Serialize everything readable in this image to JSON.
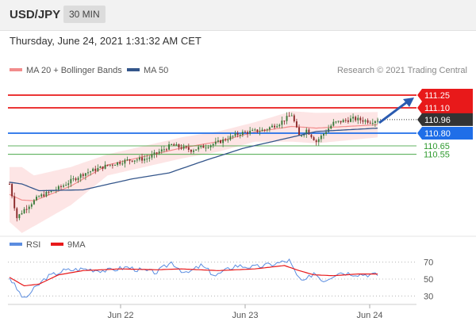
{
  "header": {
    "symbol": "USD/JPY",
    "timeframe": "30 MIN",
    "datetime": "Thursday, June 24, 2021 1:31:32 AM CET"
  },
  "colors": {
    "resistance": "#e8191a",
    "support": "#1f6ee8",
    "current": "#333333",
    "fib": "#2e9a2e",
    "ma20": "#f28c8c",
    "band_fill": "#fde0e0",
    "ma50": "#34568b",
    "bull": "#3a7a3a",
    "bear": "#8b2a2a",
    "arrow": "#2a5bb0",
    "rsi": "#5b8de0",
    "rsi_ma": "#e8191a"
  },
  "chart_data": [
    {
      "type": "candlestick",
      "legend": {
        "placement": "top-left",
        "items": [
          {
            "name": "MA 20 + Bollinger Bands",
            "color": "#f28c8c"
          },
          {
            "name": "MA 50",
            "color": "#34568b"
          }
        ]
      },
      "copyright": "Research © 2021 Trading Central",
      "x_ticks": [
        "Jun 22",
        "Jun 23",
        "Jun 24"
      ],
      "ylim": [
        109.6,
        111.4
      ],
      "current_price": 110.96,
      "levels": [
        {
          "label": "111.25",
          "value": 111.25,
          "kind": "resistance"
        },
        {
          "label": "111.10",
          "value": 111.1,
          "kind": "resistance"
        },
        {
          "label": "110.80",
          "value": 110.8,
          "kind": "support"
        },
        {
          "label": "110.65",
          "value": 110.65,
          "kind": "fib"
        },
        {
          "label": "110.55",
          "value": 110.55,
          "kind": "fib"
        }
      ],
      "trend_arrow": {
        "from": 110.96,
        "to": 111.25
      },
      "close_anchors": [
        [
          0,
          110.2
        ],
        [
          3,
          109.8
        ],
        [
          6,
          109.9
        ],
        [
          12,
          110.05
        ],
        [
          20,
          110.15
        ],
        [
          30,
          110.32
        ],
        [
          40,
          110.42
        ],
        [
          48,
          110.48
        ],
        [
          56,
          110.5
        ],
        [
          66,
          110.66
        ],
        [
          74,
          110.6
        ],
        [
          84,
          110.68
        ],
        [
          94,
          110.8
        ],
        [
          104,
          110.84
        ],
        [
          110,
          110.92
        ],
        [
          115,
          111.02
        ],
        [
          118,
          110.76
        ],
        [
          121,
          110.84
        ],
        [
          125,
          110.7
        ],
        [
          132,
          110.92
        ],
        [
          140,
          110.97
        ],
        [
          147,
          110.94
        ],
        [
          150,
          110.96
        ]
      ],
      "bands": {
        "upper": [
          [
            0,
            110.4
          ],
          [
            5,
            110.4
          ],
          [
            10,
            110.3
          ],
          [
            25,
            110.4
          ],
          [
            40,
            110.55
          ],
          [
            55,
            110.65
          ],
          [
            70,
            110.75
          ],
          [
            85,
            110.82
          ],
          [
            100,
            110.93
          ],
          [
            115,
            111.06
          ],
          [
            125,
            111.04
          ],
          [
            150,
            111.05
          ]
        ],
        "lower": [
          [
            0,
            109.75
          ],
          [
            5,
            109.62
          ],
          [
            10,
            109.7
          ],
          [
            25,
            109.95
          ],
          [
            40,
            110.3
          ],
          [
            55,
            110.4
          ],
          [
            70,
            110.5
          ],
          [
            85,
            110.58
          ],
          [
            100,
            110.7
          ],
          [
            115,
            110.7
          ],
          [
            125,
            110.68
          ],
          [
            150,
            110.75
          ]
        ]
      },
      "ma50": [
        [
          0,
          110.22
        ],
        [
          5,
          110.2
        ],
        [
          12,
          110.12
        ],
        [
          30,
          110.13
        ],
        [
          50,
          110.26
        ],
        [
          65,
          110.33
        ],
        [
          80,
          110.48
        ],
        [
          95,
          110.62
        ],
        [
          110,
          110.72
        ],
        [
          125,
          110.82
        ],
        [
          150,
          110.86
        ]
      ]
    },
    {
      "type": "line",
      "legend": {
        "placement": "top-left",
        "items": [
          {
            "name": "RSI",
            "color": "#5b8de0"
          },
          {
            "name": "9MA",
            "color": "#e8191a"
          }
        ]
      },
      "y_ticks": [
        30,
        50,
        70
      ],
      "ylim": [
        20,
        80
      ],
      "rsi_anchors": [
        [
          0,
          52
        ],
        [
          3,
          38
        ],
        [
          6,
          26
        ],
        [
          10,
          38
        ],
        [
          15,
          52
        ],
        [
          22,
          60
        ],
        [
          30,
          62
        ],
        [
          40,
          60
        ],
        [
          48,
          64
        ],
        [
          54,
          60
        ],
        [
          60,
          58
        ],
        [
          66,
          70
        ],
        [
          72,
          56
        ],
        [
          78,
          66
        ],
        [
          84,
          54
        ],
        [
          92,
          66
        ],
        [
          100,
          64
        ],
        [
          108,
          68
        ],
        [
          114,
          72
        ],
        [
          117,
          54
        ],
        [
          120,
          46
        ],
        [
          124,
          58
        ],
        [
          128,
          48
        ],
        [
          134,
          58
        ],
        [
          142,
          56
        ],
        [
          150,
          55
        ]
      ],
      "ma9_anchors": [
        [
          0,
          52
        ],
        [
          6,
          42
        ],
        [
          12,
          44
        ],
        [
          20,
          55
        ],
        [
          30,
          60
        ],
        [
          45,
          62
        ],
        [
          60,
          61
        ],
        [
          70,
          62
        ],
        [
          85,
          60
        ],
        [
          100,
          62
        ],
        [
          112,
          66
        ],
        [
          118,
          60
        ],
        [
          124,
          55
        ],
        [
          132,
          54
        ],
        [
          142,
          56
        ],
        [
          150,
          56
        ]
      ]
    }
  ]
}
